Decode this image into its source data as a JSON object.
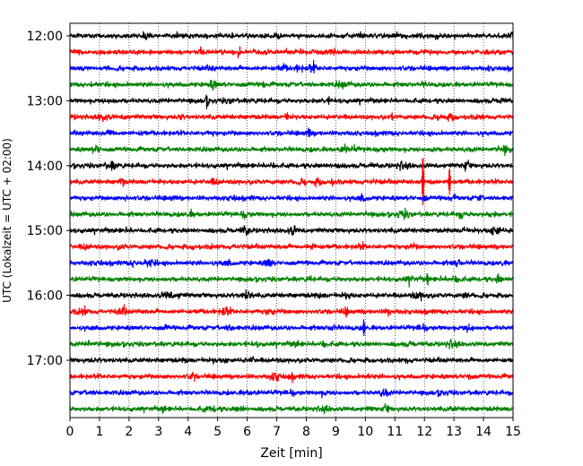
{
  "chart_data": {
    "type": "line",
    "title": "",
    "xlabel": "Zeit  [min]",
    "ylabel": "UTC (Lokalzeit = UTC + 02:00)",
    "xlim": [
      0,
      15
    ],
    "x_ticks": [
      "0",
      "1",
      "2",
      "3",
      "4",
      "5",
      "6",
      "7",
      "8",
      "9",
      "10",
      "11",
      "12",
      "13",
      "14",
      "15"
    ],
    "y_ticks": [
      "12:00",
      "13:00",
      "14:00",
      "15:00",
      "16:00",
      "17:00"
    ],
    "grid": "vertical dotted lines at each minute",
    "row_interval_min": 15,
    "rows": [
      {
        "start": "12:00",
        "color": "#000000"
      },
      {
        "start": "12:15",
        "color": "#ff0000"
      },
      {
        "start": "12:30",
        "color": "#0000ff"
      },
      {
        "start": "12:45",
        "color": "#008000"
      },
      {
        "start": "13:00",
        "color": "#000000"
      },
      {
        "start": "13:15",
        "color": "#ff0000"
      },
      {
        "start": "13:30",
        "color": "#0000ff"
      },
      {
        "start": "13:45",
        "color": "#008000"
      },
      {
        "start": "14:00",
        "color": "#000000"
      },
      {
        "start": "14:15",
        "color": "#ff0000"
      },
      {
        "start": "14:30",
        "color": "#0000ff"
      },
      {
        "start": "14:45",
        "color": "#008000"
      },
      {
        "start": "15:00",
        "color": "#000000"
      },
      {
        "start": "15:15",
        "color": "#ff0000"
      },
      {
        "start": "15:30",
        "color": "#0000ff"
      },
      {
        "start": "15:45",
        "color": "#008000"
      },
      {
        "start": "16:00",
        "color": "#000000"
      },
      {
        "start": "16:15",
        "color": "#ff0000"
      },
      {
        "start": "16:30",
        "color": "#0000ff"
      },
      {
        "start": "16:45",
        "color": "#008000"
      },
      {
        "start": "17:00",
        "color": "#000000"
      },
      {
        "start": "17:15",
        "color": "#ff0000"
      },
      {
        "start": "17:30",
        "color": "#0000ff"
      },
      {
        "start": "17:45",
        "color": "#008000"
      }
    ],
    "events": [
      {
        "row": "14:15",
        "minute": 11.95,
        "amplitude": 3.2
      },
      {
        "row": "14:15",
        "minute": 12.85,
        "amplitude": 1.7
      },
      {
        "row": "16:30",
        "minute": 9.95,
        "amplitude": 0.9
      },
      {
        "row": "15:45",
        "minute": 12.1,
        "amplitude": 0.7
      },
      {
        "row": "13:15",
        "minute": 10.9,
        "amplitude": 0.5
      }
    ]
  }
}
